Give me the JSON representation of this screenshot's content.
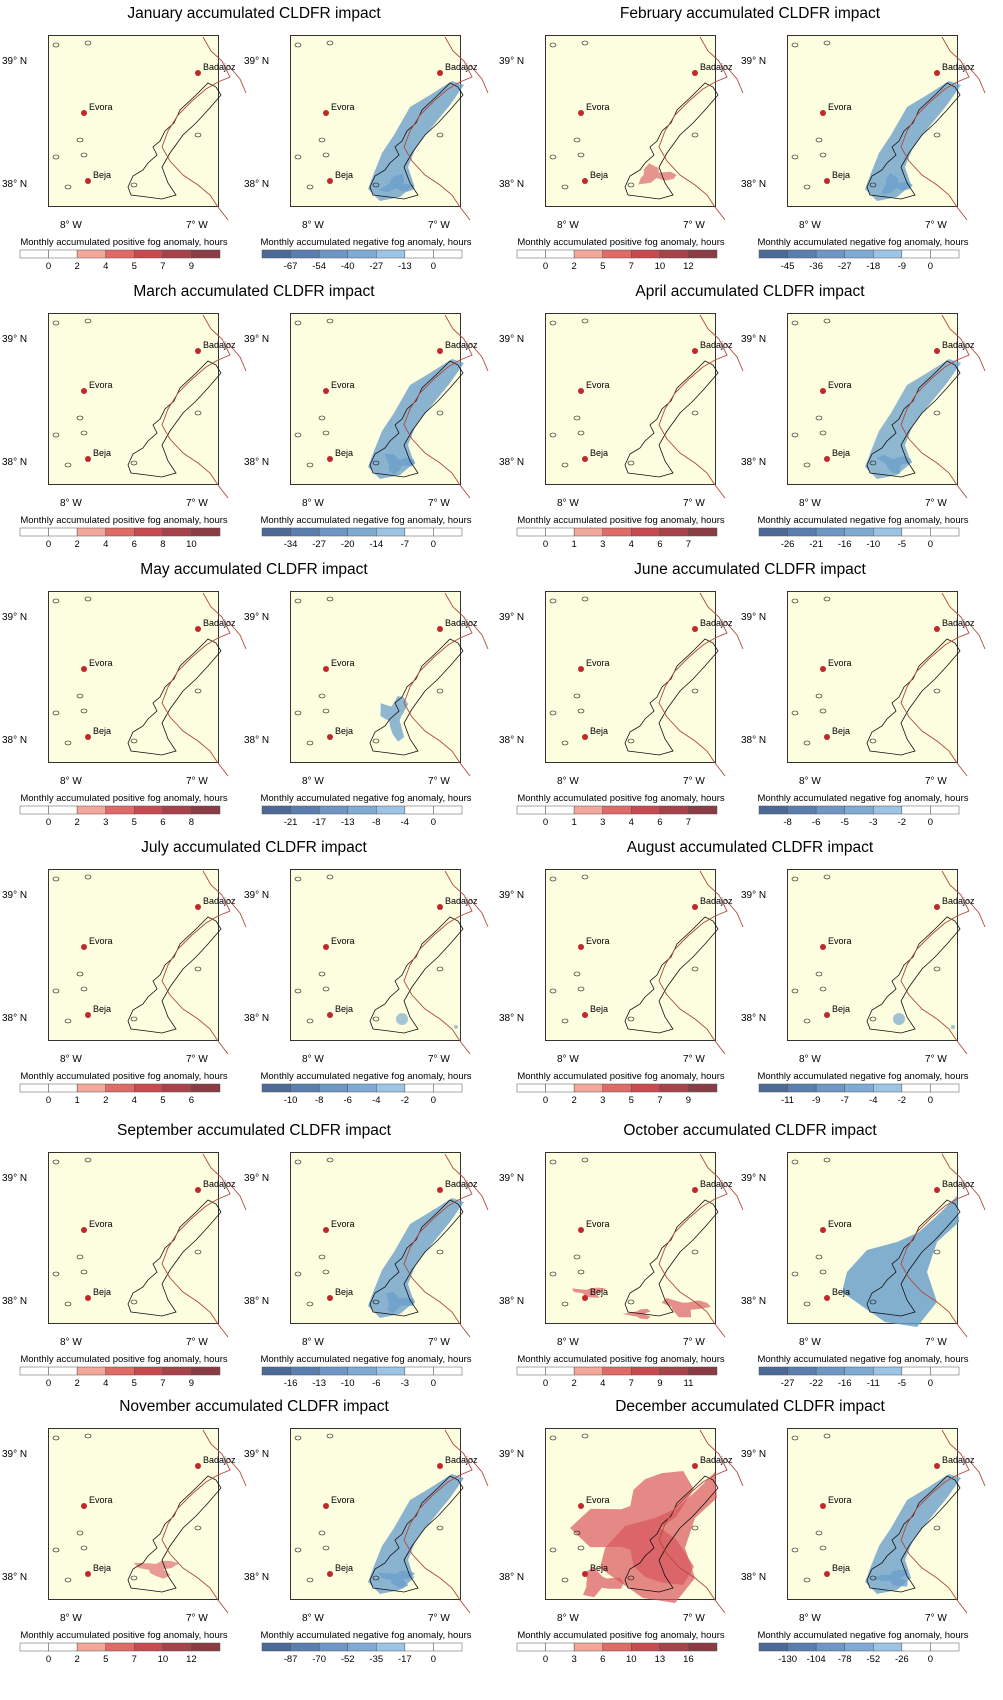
{
  "labels": {
    "lat_top": "39° N",
    "lat_bottom": "38° N",
    "lon_left": "8° W",
    "lon_right": "7° W",
    "cities": [
      "Badajoz",
      "Evora",
      "Beja"
    ],
    "pos_cbar_title": "Monthly accumulated positive fog anomaly, hours",
    "neg_cbar_title": "Monthly accumulated negative fog anomaly, hours"
  },
  "colors": {
    "land": "#fdfde0",
    "border": "#b04a3a",
    "city": "#c0282a",
    "blue_fill": "#6a9fcb",
    "red_fill": "#d9575e",
    "pos_scale": [
      "#ffffff",
      "#ffffff",
      "#f3a79a",
      "#e06a66",
      "#c84a50",
      "#a6424a",
      "#8a3c44"
    ],
    "neg_scale": [
      "#4c6a95",
      "#5a7eae",
      "#6f97c6",
      "#7eaad4",
      "#9cc4e4",
      "#ffffff",
      "#ffffff"
    ]
  },
  "months": [
    {
      "title": "January accumulated CLDFR impact",
      "pos_ticks": [
        "0",
        "2",
        "4",
        "5",
        "7",
        "9"
      ],
      "neg_ticks": [
        "-67",
        "-54",
        "-40",
        "-27",
        "-13",
        "0"
      ],
      "pos_level": 0.0,
      "neg_level": 0.6,
      "pos_extent": "none",
      "neg_extent": "river"
    },
    {
      "title": "February accumulated CLDFR impact",
      "pos_ticks": [
        "0",
        "2",
        "5",
        "7",
        "10",
        "12"
      ],
      "neg_ticks": [
        "-45",
        "-36",
        "-27",
        "-18",
        "-9",
        "0"
      ],
      "pos_level": 0.2,
      "neg_level": 0.6,
      "pos_extent": "patch",
      "neg_extent": "river"
    },
    {
      "title": "March accumulated CLDFR impact",
      "pos_ticks": [
        "0",
        "2",
        "4",
        "6",
        "8",
        "10"
      ],
      "neg_ticks": [
        "-34",
        "-27",
        "-20",
        "-14",
        "-7",
        "0"
      ],
      "pos_level": 0.0,
      "neg_level": 0.6,
      "pos_extent": "none",
      "neg_extent": "river"
    },
    {
      "title": "April accumulated CLDFR impact",
      "pos_ticks": [
        "0",
        "1",
        "3",
        "4",
        "6",
        "7"
      ],
      "neg_ticks": [
        "-26",
        "-21",
        "-16",
        "-10",
        "-5",
        "0"
      ],
      "pos_level": 0.0,
      "neg_level": 0.5,
      "pos_extent": "none",
      "neg_extent": "river"
    },
    {
      "title": "May accumulated CLDFR impact",
      "pos_ticks": [
        "0",
        "2",
        "3",
        "5",
        "6",
        "8"
      ],
      "neg_ticks": [
        "-21",
        "-17",
        "-13",
        "-8",
        "-4",
        "0"
      ],
      "pos_level": 0.0,
      "neg_level": 0.5,
      "pos_extent": "none",
      "neg_extent": "small"
    },
    {
      "title": "June accumulated CLDFR impact",
      "pos_ticks": [
        "0",
        "1",
        "3",
        "4",
        "6",
        "7"
      ],
      "neg_ticks": [
        "-8",
        "-6",
        "-5",
        "-3",
        "-2",
        "0"
      ],
      "pos_level": 0.0,
      "neg_level": 0.0,
      "pos_extent": "none",
      "neg_extent": "none"
    },
    {
      "title": "July accumulated CLDFR impact",
      "pos_ticks": [
        "0",
        "1",
        "2",
        "4",
        "5",
        "6"
      ],
      "neg_ticks": [
        "-10",
        "-8",
        "-6",
        "-4",
        "-2",
        "0"
      ],
      "pos_level": 0.0,
      "neg_level": 0.1,
      "pos_extent": "none",
      "neg_extent": "dots"
    },
    {
      "title": "August accumulated CLDFR impact",
      "pos_ticks": [
        "0",
        "2",
        "3",
        "5",
        "7",
        "9"
      ],
      "neg_ticks": [
        "-11",
        "-9",
        "-7",
        "-4",
        "-2",
        "0"
      ],
      "pos_level": 0.0,
      "neg_level": 0.2,
      "pos_extent": "none",
      "neg_extent": "dots"
    },
    {
      "title": "September accumulated CLDFR impact",
      "pos_ticks": [
        "0",
        "2",
        "4",
        "5",
        "7",
        "9"
      ],
      "neg_ticks": [
        "-16",
        "-13",
        "-10",
        "-6",
        "-3",
        "0"
      ],
      "pos_level": 0.0,
      "neg_level": 0.6,
      "pos_extent": "none",
      "neg_extent": "river"
    },
    {
      "title": "October accumulated CLDFR impact",
      "pos_ticks": [
        "0",
        "2",
        "4",
        "7",
        "9",
        "11"
      ],
      "neg_ticks": [
        "-27",
        "-22",
        "-16",
        "-11",
        "-5",
        "0"
      ],
      "pos_level": 0.3,
      "neg_level": 0.7,
      "pos_extent": "south",
      "neg_extent": "wide"
    },
    {
      "title": "November accumulated CLDFR impact",
      "pos_ticks": [
        "0",
        "2",
        "5",
        "7",
        "10",
        "12"
      ],
      "neg_ticks": [
        "-87",
        "-70",
        "-52",
        "-35",
        "-17",
        "0"
      ],
      "pos_level": 0.1,
      "neg_level": 0.6,
      "pos_extent": "patch",
      "neg_extent": "river"
    },
    {
      "title": "December accumulated CLDFR impact",
      "pos_ticks": [
        "0",
        "3",
        "6",
        "10",
        "13",
        "16"
      ],
      "neg_ticks": [
        "-130",
        "-104",
        "-78",
        "-52",
        "-26",
        "0"
      ],
      "pos_level": 0.4,
      "neg_level": 0.6,
      "pos_extent": "wide",
      "neg_extent": "river"
    }
  ]
}
